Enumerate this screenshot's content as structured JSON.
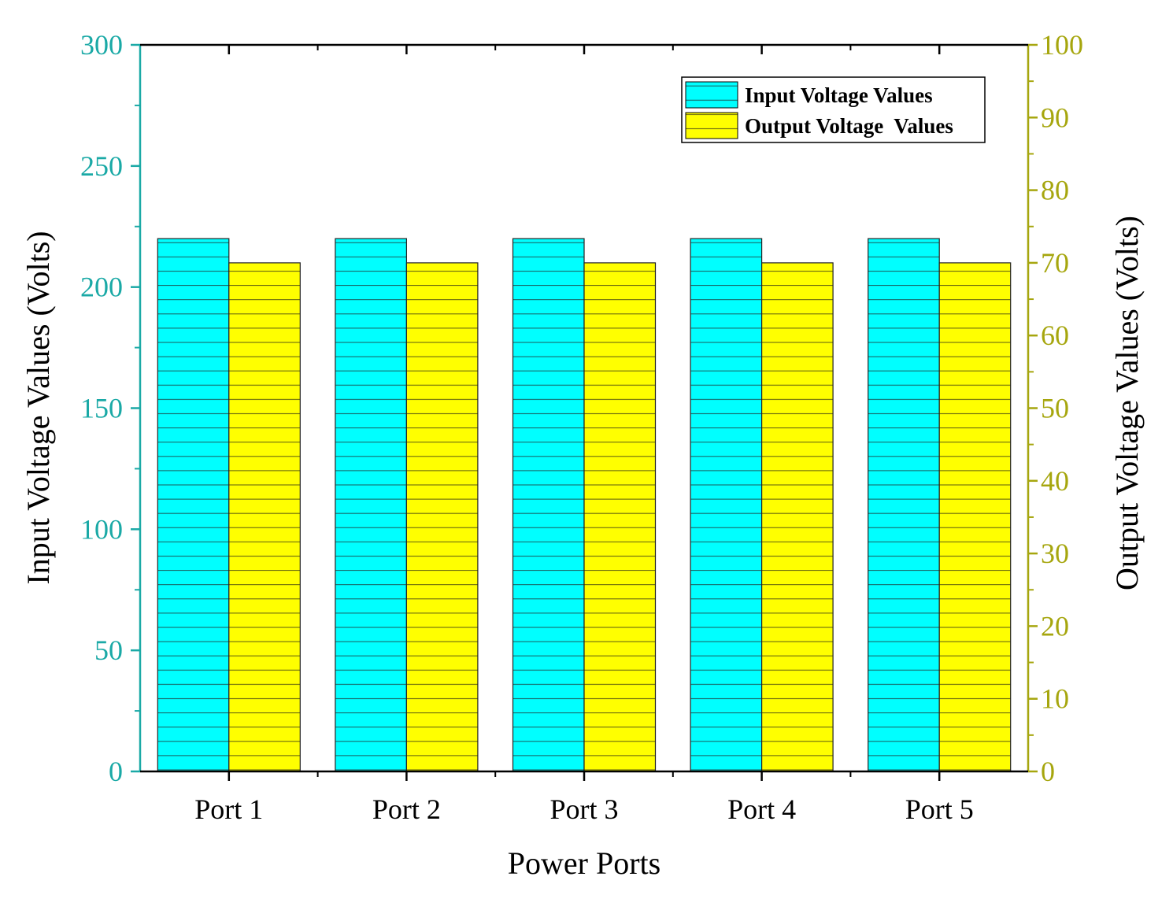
{
  "chart_data": {
    "type": "bar",
    "categories": [
      "Port 1",
      "Port 2",
      "Port 3",
      "Port 4",
      "Port 5"
    ],
    "series": [
      {
        "name": "Input Voltage Values",
        "axis": "left",
        "values": [
          220,
          220,
          220,
          220,
          220
        ],
        "color": "#00FFFF"
      },
      {
        "name": "Output Voltage  Values",
        "axis": "right",
        "values": [
          70,
          70,
          70,
          70,
          70
        ],
        "color": "#FFFF00"
      }
    ],
    "xlabel": "Power Ports",
    "ylabel": "Input Voltage Values (Volts)",
    "y2label": "Output Voltage  Values (Volts)",
    "ylim": [
      0,
      300
    ],
    "y2lim": [
      0,
      100
    ],
    "yticks": [
      0,
      50,
      100,
      150,
      200,
      250,
      300
    ],
    "y2ticks": [
      0,
      10,
      20,
      30,
      40,
      50,
      60,
      70,
      80,
      90,
      100
    ],
    "left_axis_color": "#1AA9A6",
    "right_axis_color": "#A6A60E",
    "legend_position": "top-right",
    "bar_pattern": "horizontal-lines"
  }
}
